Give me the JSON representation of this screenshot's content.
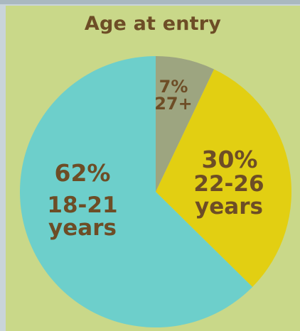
{
  "chart_data": {
    "type": "pie",
    "title": "Age at entry",
    "slices": [
      {
        "percent_label": "7%",
        "label": "27+",
        "value": 7,
        "color": "#9da580"
      },
      {
        "percent_label": "30%",
        "label_line1": "22-26",
        "label_line2": "years",
        "value": 30,
        "color": "#e2cf12"
      },
      {
        "percent_label": "62%",
        "label_line1": "18-21",
        "label_line2": "years",
        "value": 62,
        "color": "#6dcfcb"
      }
    ],
    "colors": {
      "background": "#c9d889",
      "frame": "#c9d4da",
      "text": "#6d4d26"
    }
  }
}
